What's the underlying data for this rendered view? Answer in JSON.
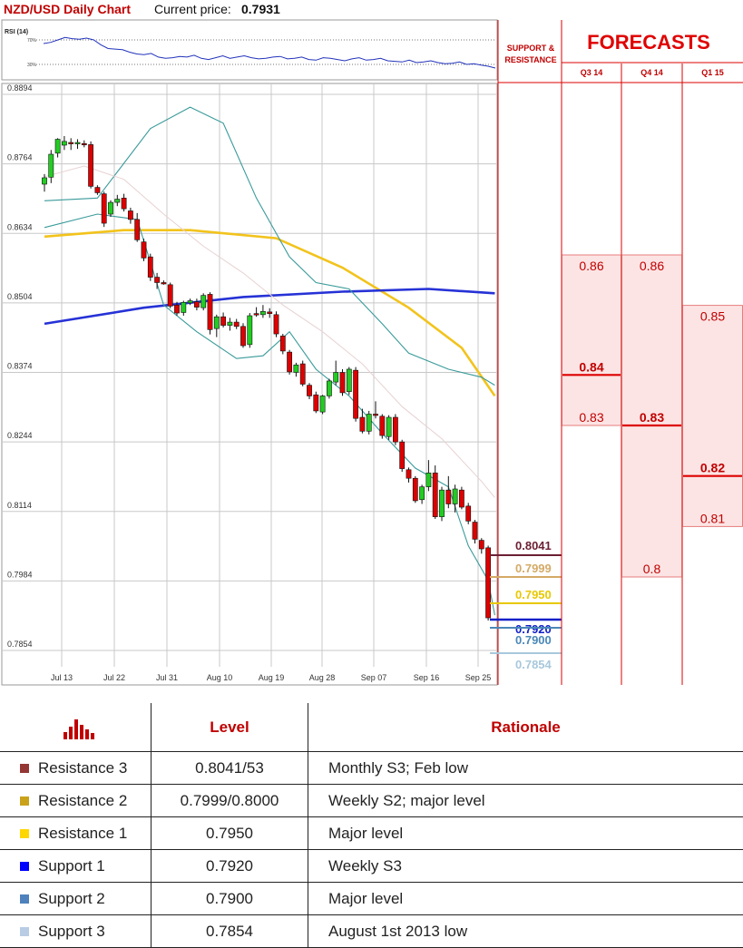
{
  "header": {
    "title": "NZD/USD Daily Chart",
    "price_label": "Current price:",
    "price_value": "0.7931"
  },
  "rsi": {
    "label": "RSI (14)",
    "levels": [
      "70%",
      "30%"
    ],
    "values": [
      64,
      66,
      70,
      74,
      72,
      71,
      73,
      70,
      62,
      56,
      55,
      54,
      50,
      47,
      46,
      48,
      42,
      40,
      41,
      43,
      42,
      45,
      40,
      38,
      41,
      44,
      40,
      42,
      44,
      41,
      39,
      40,
      42,
      43,
      39,
      40,
      42,
      38,
      37,
      41,
      40,
      38,
      36,
      39,
      41,
      37,
      38,
      40,
      36,
      35,
      34,
      37,
      33,
      34,
      36,
      33,
      31,
      32,
      34,
      30,
      31,
      29,
      27,
      24
    ]
  },
  "sr_panel": {
    "title": "SUPPORT & RESISTANCE"
  },
  "forecasts": {
    "title": "FORECASTS",
    "columns": [
      {
        "label": "Q3 14",
        "values": [
          "0.86",
          "0.84",
          "0.83"
        ],
        "median": "0.84"
      },
      {
        "label": "Q4 14",
        "values": [
          "0.86",
          "0.83",
          "0.8"
        ],
        "median": "0.83"
      },
      {
        "label": "Q1 15",
        "values": [
          "0.85",
          "0.82",
          "0.81"
        ],
        "median": "0.82"
      }
    ]
  },
  "chart_data": {
    "type": "candlestick",
    "pair": "NZD/USD",
    "timeframe": "Daily",
    "y_ticks": [
      "0.8894",
      "0.8764",
      "0.8634",
      "0.8504",
      "0.8374",
      "0.8244",
      "0.8114",
      "0.7984",
      "0.7854"
    ],
    "x_ticks": [
      "Jul 13",
      "Jul 22",
      "Jul 31",
      "Aug 10",
      "Aug 19",
      "Aug 28",
      "Sep 07",
      "Sep 16",
      "Sep 25"
    ],
    "ylim": [
      0.7825,
      0.8895
    ],
    "candles": [
      {
        "o": 0.8726,
        "h": 0.8745,
        "l": 0.8712,
        "c": 0.8738
      },
      {
        "o": 0.8739,
        "h": 0.879,
        "l": 0.8728,
        "c": 0.8782
      },
      {
        "o": 0.8784,
        "h": 0.8812,
        "l": 0.8776,
        "c": 0.881
      },
      {
        "o": 0.8799,
        "h": 0.8816,
        "l": 0.879,
        "c": 0.8806
      },
      {
        "o": 0.8804,
        "h": 0.8812,
        "l": 0.879,
        "c": 0.8803
      },
      {
        "o": 0.8802,
        "h": 0.881,
        "l": 0.8792,
        "c": 0.8804
      },
      {
        "o": 0.8802,
        "h": 0.8808,
        "l": 0.8795,
        "c": 0.8801
      },
      {
        "o": 0.88,
        "h": 0.8806,
        "l": 0.8718,
        "c": 0.8722
      },
      {
        "o": 0.872,
        "h": 0.8724,
        "l": 0.8706,
        "c": 0.871
      },
      {
        "o": 0.8708,
        "h": 0.8712,
        "l": 0.8646,
        "c": 0.8653
      },
      {
        "o": 0.867,
        "h": 0.8696,
        "l": 0.8665,
        "c": 0.8692
      },
      {
        "o": 0.8692,
        "h": 0.8706,
        "l": 0.8685,
        "c": 0.8698
      },
      {
        "o": 0.87,
        "h": 0.8708,
        "l": 0.8675,
        "c": 0.868
      },
      {
        "o": 0.8676,
        "h": 0.8682,
        "l": 0.8652,
        "c": 0.866
      },
      {
        "o": 0.866,
        "h": 0.8672,
        "l": 0.8618,
        "c": 0.8622
      },
      {
        "o": 0.8618,
        "h": 0.8624,
        "l": 0.8582,
        "c": 0.8588
      },
      {
        "o": 0.859,
        "h": 0.8596,
        "l": 0.8545,
        "c": 0.8552
      },
      {
        "o": 0.8552,
        "h": 0.856,
        "l": 0.853,
        "c": 0.8542
      },
      {
        "o": 0.8542,
        "h": 0.8546,
        "l": 0.8538,
        "c": 0.854
      },
      {
        "o": 0.8538,
        "h": 0.8542,
        "l": 0.8494,
        "c": 0.8498
      },
      {
        "o": 0.85,
        "h": 0.8506,
        "l": 0.848,
        "c": 0.8485
      },
      {
        "o": 0.8486,
        "h": 0.8508,
        "l": 0.848,
        "c": 0.8505
      },
      {
        "o": 0.8504,
        "h": 0.8512,
        "l": 0.85,
        "c": 0.8508
      },
      {
        "o": 0.8506,
        "h": 0.8512,
        "l": 0.849,
        "c": 0.8496
      },
      {
        "o": 0.8495,
        "h": 0.8522,
        "l": 0.849,
        "c": 0.8518
      },
      {
        "o": 0.852,
        "h": 0.8524,
        "l": 0.8445,
        "c": 0.8454
      },
      {
        "o": 0.8456,
        "h": 0.8482,
        "l": 0.844,
        "c": 0.8478
      },
      {
        "o": 0.8478,
        "h": 0.8486,
        "l": 0.8458,
        "c": 0.8462
      },
      {
        "o": 0.8462,
        "h": 0.8476,
        "l": 0.8452,
        "c": 0.8468
      },
      {
        "o": 0.8468,
        "h": 0.8474,
        "l": 0.8455,
        "c": 0.846
      },
      {
        "o": 0.846,
        "h": 0.8466,
        "l": 0.842,
        "c": 0.8424
      },
      {
        "o": 0.8426,
        "h": 0.8485,
        "l": 0.842,
        "c": 0.848
      },
      {
        "o": 0.8484,
        "h": 0.8496,
        "l": 0.8478,
        "c": 0.8482
      },
      {
        "o": 0.8482,
        "h": 0.85,
        "l": 0.8476,
        "c": 0.8488
      },
      {
        "o": 0.8487,
        "h": 0.8494,
        "l": 0.8476,
        "c": 0.8484
      },
      {
        "o": 0.8482,
        "h": 0.8488,
        "l": 0.844,
        "c": 0.8446
      },
      {
        "o": 0.8442,
        "h": 0.8446,
        "l": 0.8408,
        "c": 0.8414
      },
      {
        "o": 0.8412,
        "h": 0.8416,
        "l": 0.837,
        "c": 0.8375
      },
      {
        "o": 0.8374,
        "h": 0.8392,
        "l": 0.8366,
        "c": 0.8388
      },
      {
        "o": 0.839,
        "h": 0.8396,
        "l": 0.8348,
        "c": 0.8352
      },
      {
        "o": 0.835,
        "h": 0.8354,
        "l": 0.8324,
        "c": 0.833
      },
      {
        "o": 0.8332,
        "h": 0.8338,
        "l": 0.8298,
        "c": 0.8302
      },
      {
        "o": 0.83,
        "h": 0.8332,
        "l": 0.8296,
        "c": 0.833
      },
      {
        "o": 0.833,
        "h": 0.8362,
        "l": 0.8325,
        "c": 0.8358
      },
      {
        "o": 0.8356,
        "h": 0.8396,
        "l": 0.835,
        "c": 0.8374
      },
      {
        "o": 0.8374,
        "h": 0.838,
        "l": 0.833,
        "c": 0.8336
      },
      {
        "o": 0.8338,
        "h": 0.8384,
        "l": 0.8332,
        "c": 0.838
      },
      {
        "o": 0.8378,
        "h": 0.8384,
        "l": 0.8282,
        "c": 0.8288
      },
      {
        "o": 0.829,
        "h": 0.8306,
        "l": 0.826,
        "c": 0.8264
      },
      {
        "o": 0.8264,
        "h": 0.8302,
        "l": 0.8258,
        "c": 0.8296
      },
      {
        "o": 0.8296,
        "h": 0.832,
        "l": 0.8288,
        "c": 0.8294
      },
      {
        "o": 0.8292,
        "h": 0.8296,
        "l": 0.825,
        "c": 0.8256
      },
      {
        "o": 0.8254,
        "h": 0.8294,
        "l": 0.8248,
        "c": 0.829
      },
      {
        "o": 0.829,
        "h": 0.8296,
        "l": 0.8238,
        "c": 0.8244
      },
      {
        "o": 0.8244,
        "h": 0.8248,
        "l": 0.8188,
        "c": 0.8194
      },
      {
        "o": 0.8192,
        "h": 0.8196,
        "l": 0.8168,
        "c": 0.8176
      },
      {
        "o": 0.8176,
        "h": 0.818,
        "l": 0.813,
        "c": 0.8134
      },
      {
        "o": 0.8136,
        "h": 0.8164,
        "l": 0.8128,
        "c": 0.816
      },
      {
        "o": 0.816,
        "h": 0.821,
        "l": 0.8152,
        "c": 0.8186
      },
      {
        "o": 0.8186,
        "h": 0.82,
        "l": 0.81,
        "c": 0.8104
      },
      {
        "o": 0.8104,
        "h": 0.816,
        "l": 0.8096,
        "c": 0.8154
      },
      {
        "o": 0.8154,
        "h": 0.818,
        "l": 0.812,
        "c": 0.8128
      },
      {
        "o": 0.8128,
        "h": 0.8164,
        "l": 0.8112,
        "c": 0.8156
      },
      {
        "o": 0.8154,
        "h": 0.816,
        "l": 0.8118,
        "c": 0.8122
      },
      {
        "o": 0.8124,
        "h": 0.813,
        "l": 0.809,
        "c": 0.8096
      },
      {
        "o": 0.8094,
        "h": 0.8098,
        "l": 0.8054,
        "c": 0.8062
      },
      {
        "o": 0.806,
        "h": 0.8064,
        "l": 0.8035,
        "c": 0.8044
      },
      {
        "o": 0.8046,
        "h": 0.805,
        "l": 0.791,
        "c": 0.7915
      }
    ],
    "overlays": [
      {
        "name": "moving average 1",
        "color": "#f2c31c",
        "points": [
          [
            0,
            0.8628
          ],
          [
            12,
            0.864
          ],
          [
            22,
            0.864
          ],
          [
            35,
            0.8625
          ],
          [
            45,
            0.857
          ],
          [
            55,
            0.8495
          ],
          [
            63,
            0.842
          ],
          [
            68,
            0.833
          ]
        ]
      },
      {
        "name": "moving average 2",
        "color": "#2632d6",
        "points": [
          [
            0,
            0.8465
          ],
          [
            15,
            0.8495
          ],
          [
            30,
            0.8515
          ],
          [
            45,
            0.8525
          ],
          [
            58,
            0.853
          ],
          [
            68,
            0.8522
          ]
        ]
      },
      {
        "name": "bollinger upper",
        "color": "#3a9a9a",
        "points": [
          [
            0,
            0.8695
          ],
          [
            8,
            0.87
          ],
          [
            16,
            0.883
          ],
          [
            22,
            0.887
          ],
          [
            27,
            0.884
          ],
          [
            32,
            0.87
          ],
          [
            37,
            0.859
          ],
          [
            41,
            0.8542
          ],
          [
            46,
            0.853
          ],
          [
            51,
            0.8465
          ],
          [
            55,
            0.841
          ],
          [
            61,
            0.838
          ],
          [
            66,
            0.8365
          ],
          [
            68,
            0.835
          ]
        ]
      },
      {
        "name": "bollinger lower",
        "color": "#3a9a9a",
        "points": [
          [
            0,
            0.8645
          ],
          [
            8,
            0.867
          ],
          [
            14,
            0.866
          ],
          [
            18,
            0.85
          ],
          [
            23,
            0.845
          ],
          [
            29,
            0.84
          ],
          [
            33,
            0.8405
          ],
          [
            37,
            0.845
          ],
          [
            41,
            0.838
          ],
          [
            46,
            0.833
          ],
          [
            51,
            0.826
          ],
          [
            56,
            0.8195
          ],
          [
            61,
            0.816
          ],
          [
            64,
            0.805
          ],
          [
            67,
            0.7985
          ],
          [
            68,
            0.792
          ]
        ]
      },
      {
        "name": "middle band",
        "color": "#e8d2d2",
        "points": [
          [
            0,
            0.874
          ],
          [
            6,
            0.876
          ],
          [
            12,
            0.8735
          ],
          [
            18,
            0.867
          ],
          [
            24,
            0.861
          ],
          [
            30,
            0.856
          ],
          [
            36,
            0.85
          ],
          [
            42,
            0.845
          ],
          [
            48,
            0.839
          ],
          [
            54,
            0.831
          ],
          [
            60,
            0.825
          ],
          [
            66,
            0.817
          ],
          [
            68,
            0.814
          ]
        ]
      }
    ]
  },
  "sr_levels": [
    {
      "value": "0.8041",
      "color": "#6b1f33"
    },
    {
      "value": "0.7999",
      "color": "#d4aa66"
    },
    {
      "value": "0.7950",
      "color": "#e8c800"
    },
    {
      "value": "0.7920",
      "color": "#1020c8"
    },
    {
      "value": "0.7900",
      "color": "#4a88b8"
    },
    {
      "value": "0.7854",
      "color": "#a8c8dc"
    }
  ],
  "table": {
    "headers": {
      "level": "Level",
      "rationale": "Rationale"
    },
    "rows": [
      {
        "name": "Resistance 3",
        "level": "0.8041/53",
        "rationale": "Monthly S3; Feb low",
        "color": "#943634"
      },
      {
        "name": "Resistance 2",
        "level": "0.7999/0.8000",
        "rationale": "Weekly S2; major level",
        "color": "#c9a21a"
      },
      {
        "name": "Resistance 1",
        "level": "0.7950",
        "rationale": "Major level",
        "color": "#ffd700"
      },
      {
        "name": "Support 1",
        "level": "0.7920",
        "rationale": "Weekly S3",
        "color": "#0000ff"
      },
      {
        "name": "Support 2",
        "level": "0.7900",
        "rationale": "Major level",
        "color": "#4f81bd"
      },
      {
        "name": "Support 3",
        "level": "0.7854",
        "rationale": "August 1st 2013 low",
        "color": "#b8cce4"
      }
    ]
  },
  "colors": {
    "accent": "#c00000",
    "up": "#22cc22",
    "down": "#dd0000"
  }
}
